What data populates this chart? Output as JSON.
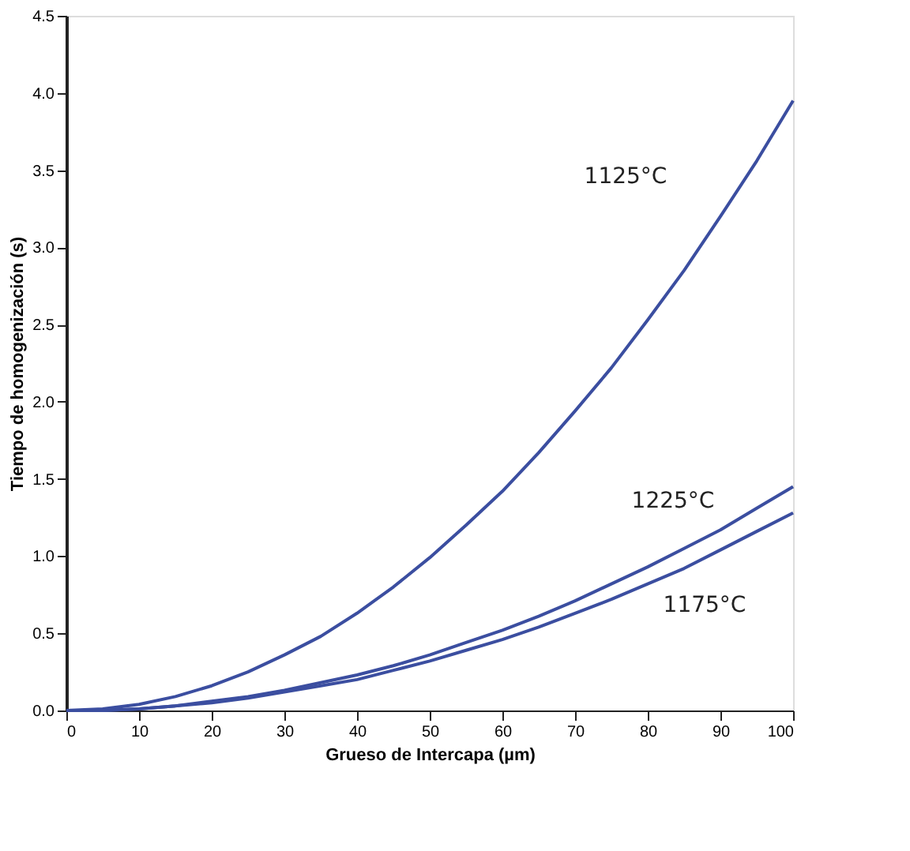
{
  "chart_data": {
    "type": "line",
    "xlabel": "Grueso de Intercapa (µm)",
    "ylabel": "Tiempo de homogenización  (s)",
    "x": [
      0,
      5,
      10,
      15,
      20,
      25,
      30,
      35,
      40,
      45,
      50,
      55,
      60,
      65,
      70,
      75,
      80,
      85,
      90,
      95,
      100
    ],
    "series": [
      {
        "name": "1125°C",
        "color": "#3b4ea0",
        "values": [
          0,
          0.01,
          0.04,
          0.09,
          0.16,
          0.25,
          0.36,
          0.48,
          0.63,
          0.8,
          0.99,
          1.2,
          1.42,
          1.67,
          1.94,
          2.22,
          2.53,
          2.85,
          3.2,
          3.56,
          3.95
        ]
      },
      {
        "name": "1225°C",
        "color": "#3b4ea0",
        "values": [
          0,
          0,
          0.01,
          0.03,
          0.06,
          0.09,
          0.13,
          0.18,
          0.23,
          0.29,
          0.36,
          0.44,
          0.52,
          0.61,
          0.71,
          0.82,
          0.93,
          1.05,
          1.17,
          1.31,
          1.45
        ]
      },
      {
        "name": "1175°C",
        "color": "#3b4ea0",
        "values": [
          0,
          0,
          0.01,
          0.03,
          0.05,
          0.08,
          0.12,
          0.16,
          0.2,
          0.26,
          0.32,
          0.39,
          0.46,
          0.54,
          0.63,
          0.72,
          0.82,
          0.92,
          1.04,
          1.16,
          1.28
        ]
      }
    ],
    "xlim": [
      0,
      100
    ],
    "xticks": [
      0,
      10,
      20,
      30,
      40,
      50,
      60,
      70,
      80,
      90,
      100
    ],
    "ylim": [
      0,
      4.5
    ],
    "yticks": [
      {
        "value": 0,
        "label": "0.0"
      },
      {
        "value": 0.5,
        "label": "0.5"
      },
      {
        "value": 1,
        "label": "1.0"
      },
      {
        "value": 1.5,
        "label": "1.5"
      },
      {
        "value": 2,
        "label": "2.0"
      },
      {
        "value": 2.5,
        "label": "2.5"
      },
      {
        "value": 3,
        "label": "3.0"
      },
      {
        "value": 3.5,
        "label": "3.5"
      },
      {
        "value": 4,
        "label": "4.0"
      },
      {
        "value": 4.5,
        "label": "4.5"
      }
    ],
    "grid": false,
    "legend": false,
    "marker": "none",
    "line_style": "solid"
  }
}
